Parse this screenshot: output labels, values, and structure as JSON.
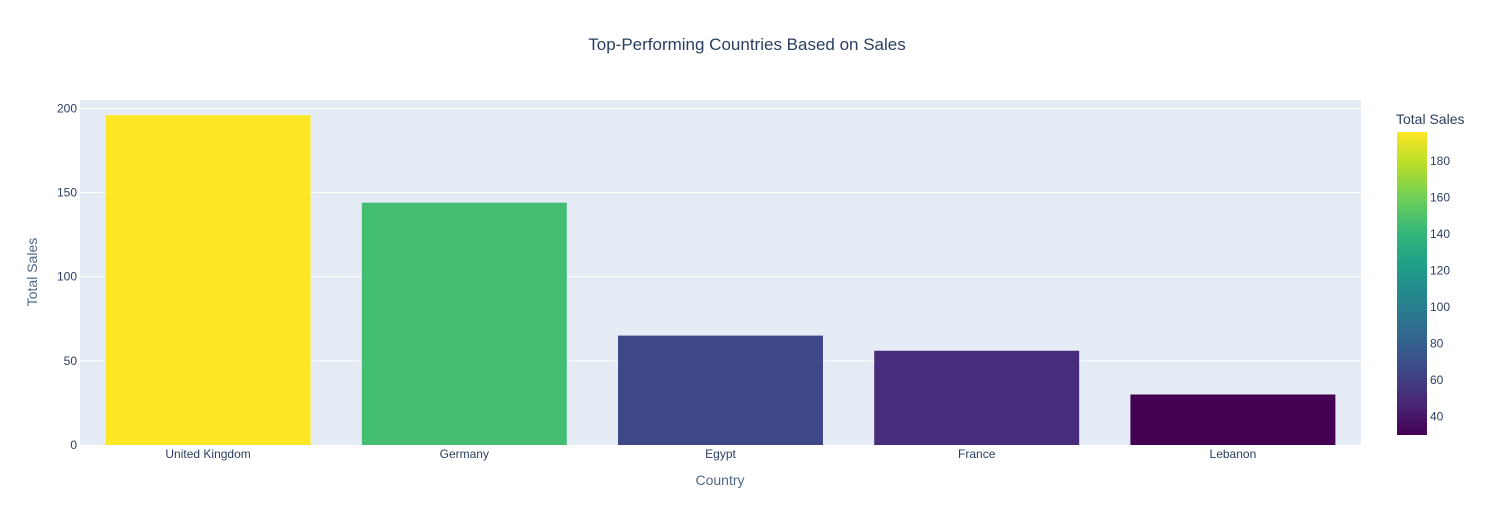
{
  "chart_data": {
    "type": "bar",
    "title": "Top-Performing Countries Based on Sales",
    "xlabel": "Country",
    "ylabel": "Total Sales",
    "categories": [
      "United Kingdom",
      "Germany",
      "Egypt",
      "France",
      "Lebanon"
    ],
    "values": [
      196,
      144,
      65,
      56,
      30
    ],
    "ylim": [
      0,
      205
    ],
    "y_ticks": [
      0,
      50,
      100,
      150,
      200
    ],
    "grid": true,
    "plot_background": "#e5ecf6",
    "colorscale": "Viridis",
    "colorbar": {
      "title": "Total Sales",
      "range": [
        30,
        196
      ],
      "ticks": [
        40,
        60,
        80,
        100,
        120,
        140,
        160,
        180
      ]
    },
    "bar_colors": [
      "#fde725",
      "#42bd72",
      "#3e4888",
      "#472d7b",
      "#440154"
    ]
  }
}
